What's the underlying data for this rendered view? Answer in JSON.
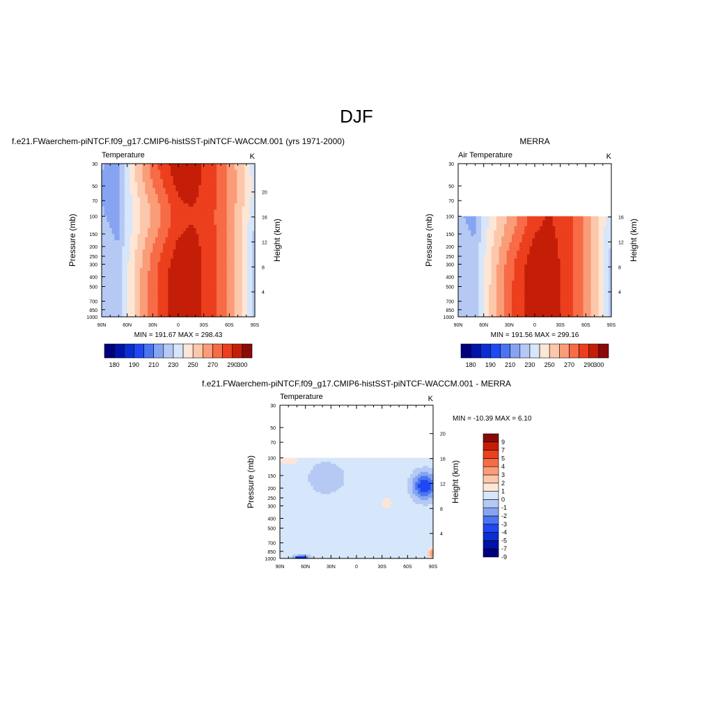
{
  "page": {
    "title": "DJF"
  },
  "colors": {
    "palette": [
      "#00007f",
      "#0013a8",
      "#0a2ed2",
      "#1f48f2",
      "#4a75f2",
      "#86a4f2",
      "#b5c9f4",
      "#d6e6fb",
      "#fde6d6",
      "#fcc7ab",
      "#fa9c78",
      "#f76b47",
      "#ec3f1d",
      "#c41e08",
      "#8a0a0a"
    ],
    "diff_palette": [
      "#00007f",
      "#0013a8",
      "#0a2ed2",
      "#1f48f2",
      "#4a75f2",
      "#86a4f2",
      "#b5c9f4",
      "#d6e6fb",
      "#fde6d6",
      "#fcc7ab",
      "#fa9c78",
      "#f76b47",
      "#ec3f1d",
      "#c41e08",
      "#8a0a0a"
    ]
  },
  "chart_data": [
    {
      "type": "heatmap",
      "id": "model",
      "title": "f.e21.FWaerchem-piNTCF.f09_g17.CMIP6-histSST-piNTCF-WACCM.001 (yrs 1971-2000)",
      "subtitle_left": "Temperature",
      "subtitle_right": "K",
      "xlabel": "",
      "ylabel": "Pressure (mb)",
      "ylabel_right": "Height (km)",
      "x_ticks": [
        "90N",
        "60N",
        "30N",
        "0",
        "30S",
        "60S",
        "90S"
      ],
      "x_range": [
        90,
        -90
      ],
      "y_ticks": [
        "30",
        "50",
        "70",
        "100",
        "150",
        "200",
        "250",
        "300",
        "400",
        "500",
        "700",
        "850",
        "1000"
      ],
      "y_tick_values": [
        30,
        50,
        70,
        100,
        150,
        200,
        250,
        300,
        400,
        500,
        700,
        850,
        1000
      ],
      "y_range": [
        30,
        1000
      ],
      "y_scale": "log",
      "right_ticks": [
        "4",
        "8",
        "12",
        "16",
        "20"
      ],
      "right_tick_values": [
        4,
        8,
        12,
        16,
        20
      ],
      "stats": "MIN = 191.67  MAX = 298.43",
      "min": 191.67,
      "max": 298.43,
      "levels": [
        180,
        185,
        190,
        200,
        210,
        220,
        230,
        240,
        250,
        260,
        270,
        280,
        290,
        300
      ],
      "colorbar_labels": [
        "180",
        "190",
        "210",
        "230",
        "250",
        "270",
        "290",
        "300"
      ],
      "colorbar_label_levels": [
        180,
        190,
        210,
        230,
        250,
        270,
        290,
        300
      ]
    },
    {
      "type": "heatmap",
      "id": "obs",
      "title": "MERRA",
      "subtitle_left": "Air Temperature",
      "subtitle_right": "K",
      "xlabel": "",
      "ylabel": "Pressure (mb)",
      "ylabel_right": "Height (km)",
      "x_ticks": [
        "90N",
        "60N",
        "30N",
        "0",
        "30S",
        "60S",
        "90S"
      ],
      "x_range": [
        90,
        -90
      ],
      "y_ticks": [
        "30",
        "50",
        "70",
        "100",
        "150",
        "200",
        "250",
        "300",
        "400",
        "500",
        "700",
        "850",
        "1000"
      ],
      "y_tick_values": [
        30,
        50,
        70,
        100,
        150,
        200,
        250,
        300,
        400,
        500,
        700,
        850,
        1000
      ],
      "y_range": [
        30,
        1000
      ],
      "y_scale": "log",
      "data_top_pressure": 100,
      "right_ticks": [
        "4",
        "8",
        "12",
        "16"
      ],
      "right_tick_values": [
        4,
        8,
        12,
        16
      ],
      "stats": "MIN = 191.56  MAX = 299.16",
      "min": 191.56,
      "max": 299.16,
      "levels": [
        180,
        185,
        190,
        200,
        210,
        220,
        230,
        240,
        250,
        260,
        270,
        280,
        290,
        300
      ],
      "colorbar_labels": [
        "180",
        "190",
        "210",
        "230",
        "250",
        "270",
        "290",
        "300"
      ],
      "colorbar_label_levels": [
        180,
        190,
        210,
        230,
        250,
        270,
        290,
        300
      ]
    },
    {
      "type": "heatmap",
      "id": "diff",
      "title": "f.e21.FWaerchem-piNTCF.f09_g17.CMIP6-histSST-piNTCF-WACCM.001 - MERRA",
      "subtitle_left": "Temperature",
      "subtitle_right": "K",
      "xlabel": "",
      "ylabel": "Pressure (mb)",
      "ylabel_right": "Height (km)",
      "x_ticks": [
        "90N",
        "60N",
        "30N",
        "0",
        "30S",
        "60S",
        "90S"
      ],
      "x_range": [
        90,
        -90
      ],
      "y_ticks": [
        "30",
        "50",
        "70",
        "100",
        "150",
        "200",
        "250",
        "300",
        "400",
        "500",
        "700",
        "850",
        "1000"
      ],
      "y_tick_values": [
        30,
        50,
        70,
        100,
        150,
        200,
        250,
        300,
        400,
        500,
        700,
        850,
        1000
      ],
      "y_range": [
        30,
        1000
      ],
      "y_scale": "log",
      "data_top_pressure": 100,
      "right_ticks": [
        "4",
        "8",
        "12",
        "16",
        "20"
      ],
      "right_tick_values": [
        4,
        8,
        12,
        16,
        20
      ],
      "stats": "MIN = -10.39  MAX =   6.10",
      "min": -10.39,
      "max": 6.1,
      "levels": [
        -9,
        -7,
        -5,
        -4,
        -3,
        -2,
        -1,
        0,
        1,
        2,
        3,
        4,
        5,
        7,
        9
      ],
      "colorbar_labels": [
        "9",
        "7",
        "5",
        "4",
        "3",
        "2",
        "1",
        "0",
        "-1",
        "-2",
        "-3",
        "-4",
        "-5",
        "-7",
        "-9"
      ],
      "colorbar_orientation": "vertical"
    }
  ]
}
